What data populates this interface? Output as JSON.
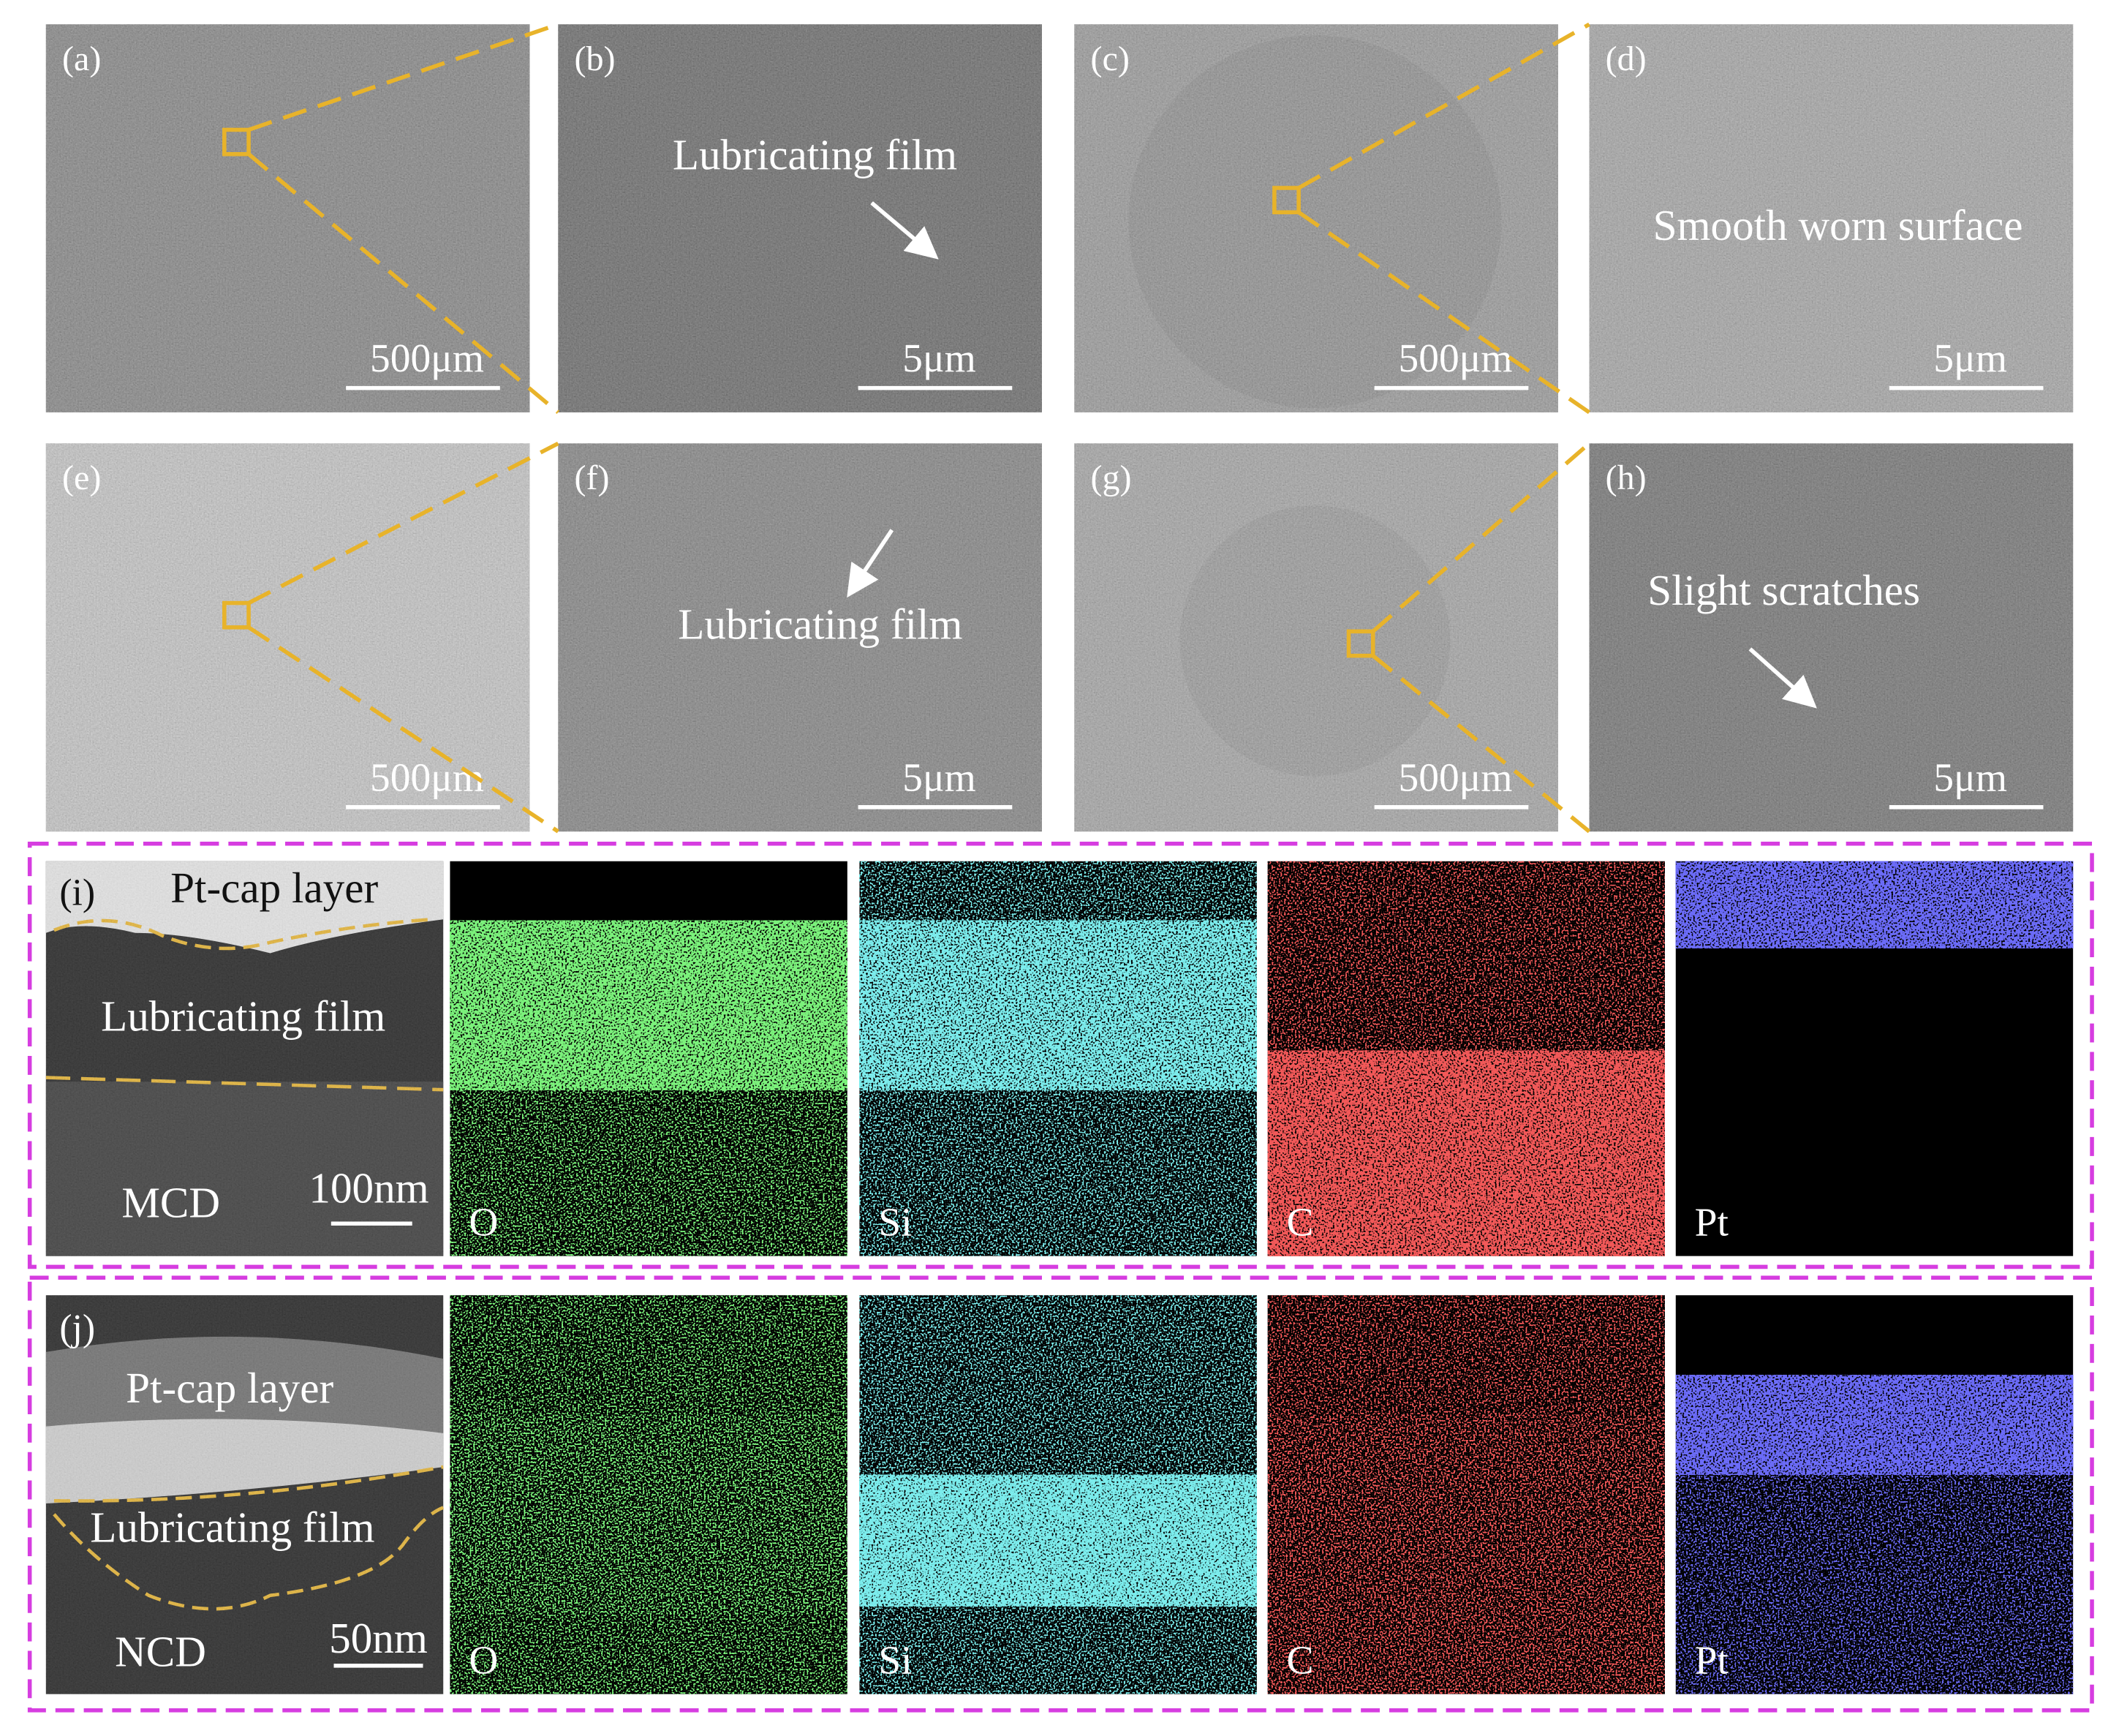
{
  "panels": [
    {
      "label": "(a)",
      "scale_bar": "500μm"
    },
    {
      "label": "(b)",
      "annotation": "Lubricating film",
      "scale_bar": "5μm"
    },
    {
      "label": "(c)",
      "scale_bar": "500μm"
    },
    {
      "label": "(d)",
      "annotation": "Smooth worn surface",
      "scale_bar": "5μm"
    },
    {
      "label": "(e)",
      "scale_bar": "500μm"
    },
    {
      "label": "(f)",
      "annotation": "Lubricating film",
      "scale_bar": "5μm"
    },
    {
      "label": "(g)",
      "scale_bar": "500μm"
    },
    {
      "label": "(h)",
      "annotation": "Slight scratches",
      "scale_bar": "5μm"
    }
  ],
  "eds_rows": [
    {
      "tem": {
        "label": "(i)",
        "top_layer": "Pt-cap layer",
        "film": "Lubricating film",
        "sample": "MCD",
        "scale_bar": "100nm"
      },
      "elements": [
        "O",
        "Si",
        "C",
        "Pt"
      ]
    },
    {
      "tem": {
        "label": "(j)",
        "top_layer": "Pt-cap layer",
        "film": "Lubricating film",
        "sample": "NCD",
        "scale_bar": "50nm"
      },
      "elements": [
        "O",
        "Si",
        "C",
        "Pt"
      ]
    }
  ]
}
